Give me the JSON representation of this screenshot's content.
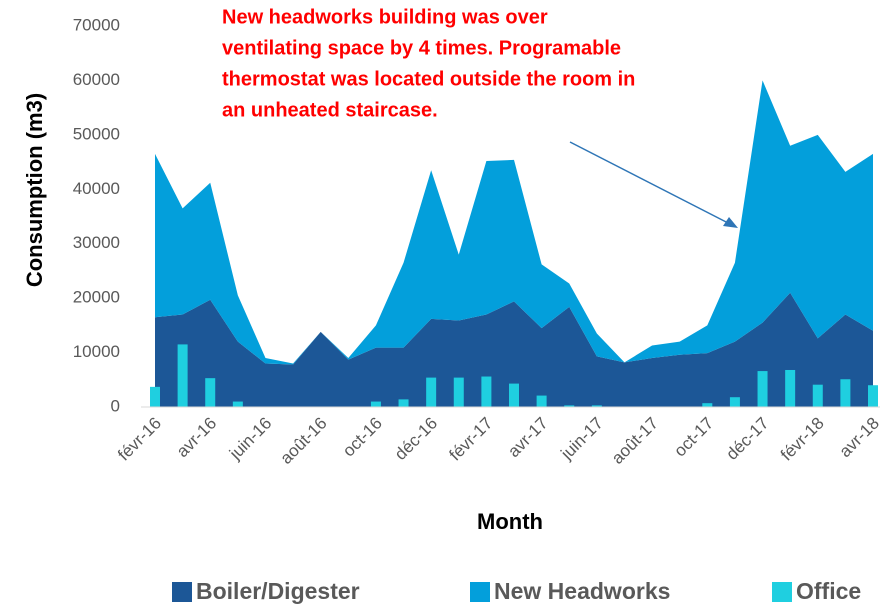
{
  "chart_data": {
    "type": "stacked-area-bar",
    "annotation": [
      "New headworks building was over",
      "ventilating space by 4 times.  Programable",
      "thermostat was located outside the room in",
      "an unheated staircase."
    ],
    "ylabel": "Consumption (m3)",
    "xlabel": "Month",
    "categories": [
      "févr-16",
      null,
      "avr-16",
      null,
      "juin-16",
      null,
      "août-16",
      null,
      "oct-16",
      null,
      "déc-16",
      null,
      "févr-17",
      null,
      "avr-17",
      null,
      "juin-17",
      null,
      "août-17",
      null,
      "oct-17",
      null,
      "déc-17",
      null,
      "févr-18",
      null,
      "avr-18"
    ],
    "series": [
      {
        "name": "Boiler/Digester",
        "color": "#1c5797",
        "kind": "area",
        "values": [
          16500,
          17000,
          19700,
          12000,
          8000,
          7800,
          13800,
          8700,
          10900,
          10900,
          16200,
          15900,
          17000,
          19400,
          14500,
          18400,
          9300,
          8200,
          9000,
          9600,
          9900,
          12000,
          15500,
          21000,
          12600,
          17000,
          14000
        ]
      },
      {
        "name": "New Headworks",
        "color": "#039fdb",
        "kind": "area",
        "values": [
          30000,
          19500,
          21500,
          8500,
          1000,
          200,
          0,
          300,
          4100,
          15600,
          27300,
          12100,
          28200,
          26000,
          11700,
          4300,
          4200,
          0,
          2300,
          2400,
          5100,
          14500,
          44500,
          27000,
          37400,
          26200,
          32500
        ]
      },
      {
        "name": "Office",
        "color": "#1fcfe0",
        "kind": "bar",
        "values": [
          3700,
          11500,
          5300,
          1000,
          0,
          0,
          0,
          0,
          1000,
          1400,
          5400,
          5400,
          5600,
          4300,
          2100,
          300,
          300,
          0,
          0,
          0,
          700,
          1800,
          6600,
          6800,
          4100,
          5100,
          4000
        ]
      }
    ],
    "ylim": [
      0,
      70000
    ],
    "yticks": [
      0,
      10000,
      20000,
      30000,
      40000,
      50000,
      60000,
      70000
    ],
    "annotation_color": "#ff0000"
  }
}
